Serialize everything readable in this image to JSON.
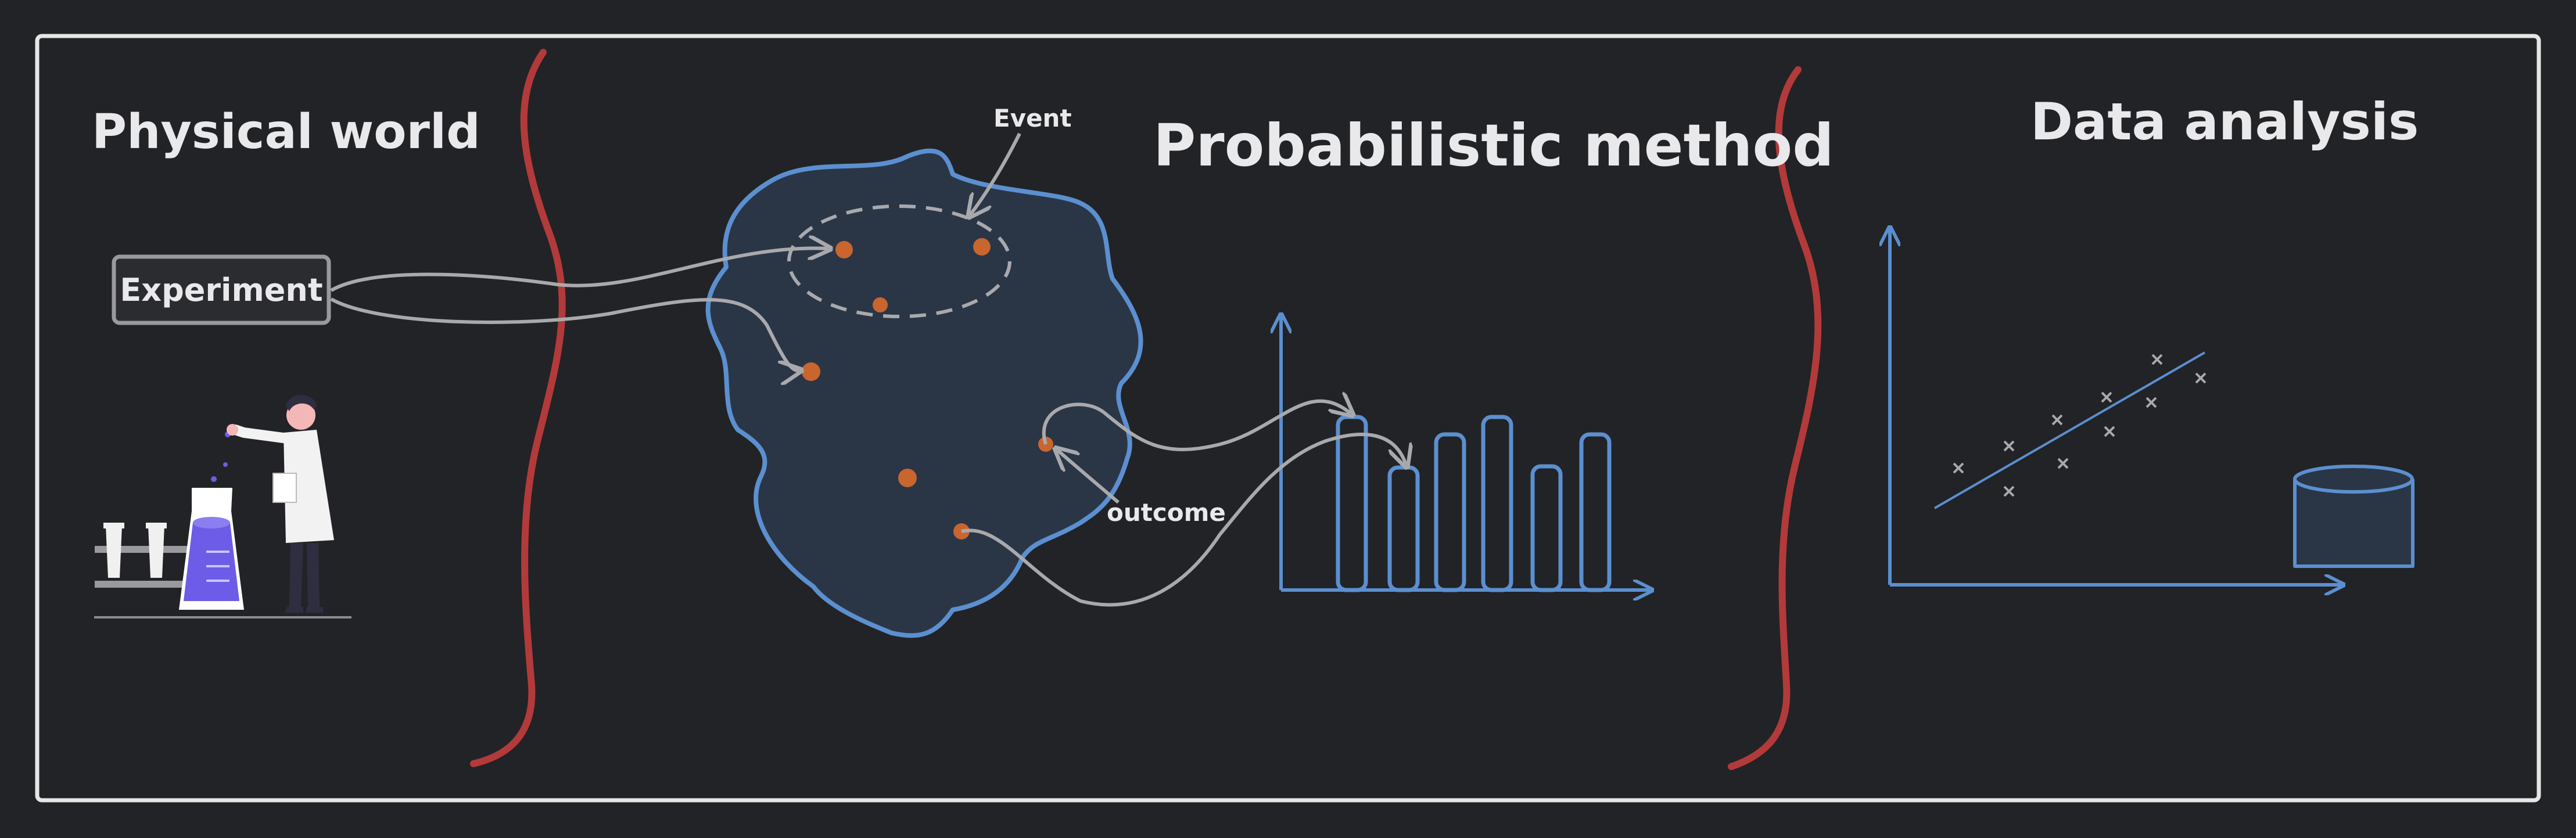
{
  "sections": {
    "physical_world": {
      "title": "Physical world"
    },
    "probabilistic_method": {
      "title": "Probabilistic method"
    },
    "data_analysis": {
      "title": "Data analysis"
    }
  },
  "experiment": {
    "label": "Experiment"
  },
  "annotations": {
    "event": "Event",
    "outcome": "outcome"
  },
  "colors": {
    "background": "#222326",
    "frame": "#e6e6e6",
    "divider": "#b33a3a",
    "accent_blue": "#5b8fd0",
    "point_orange": "#c9652e",
    "arrow_gray": "#a9a9ad",
    "text": "#e9e9ec",
    "flask_purple": "#6c5ce7"
  },
  "icons": [
    "scientist-illustration",
    "flask-icon",
    "test-tube-rack-icon",
    "database-cylinder-icon"
  ]
}
